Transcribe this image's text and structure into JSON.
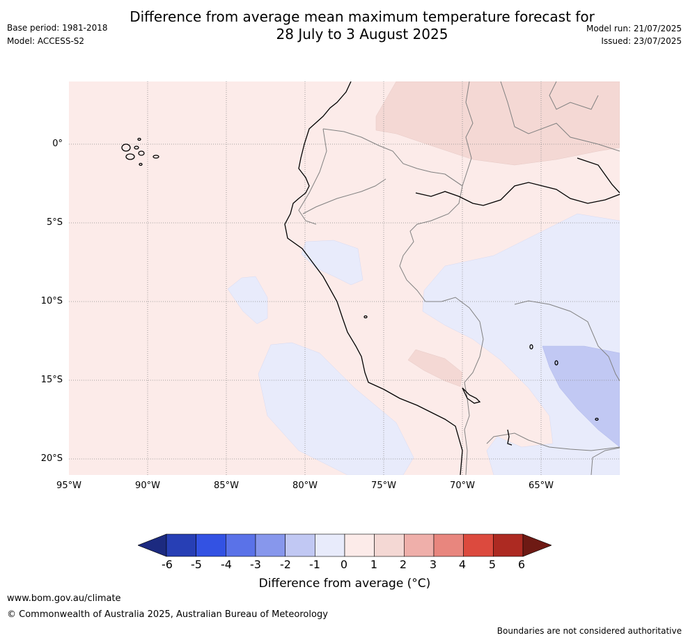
{
  "header": {
    "title_line1": "Difference from average mean maximum temperature forecast for",
    "title_line2": "28 July to 3 August 2025",
    "base_period": "Base period: 1981-2018",
    "model": "Model: ACCESS-S2",
    "model_run": "Model run: 21/07/2025",
    "issued": "Issued: 23/07/2025"
  },
  "map": {
    "lat_labels": [
      "0°",
      "5°S",
      "10°S",
      "15°S",
      "20°S"
    ],
    "lon_labels": [
      "95°W",
      "90°W",
      "85°W",
      "80°W",
      "75°W",
      "70°W",
      "65°W"
    ],
    "colors": {
      "ocean_land_0_1": "#fcebe9",
      "warm_1_2": "#f4d8d4",
      "cool_0_-1": "#e8ebfb",
      "cool_-1_-2": "#c1c8f3",
      "coastline": "#000000",
      "border": "#808080",
      "grid": "#888888"
    }
  },
  "colorbar": {
    "labels": [
      "-6",
      "-5",
      "-4",
      "-3",
      "-2",
      "-1",
      "0",
      "1",
      "2",
      "3",
      "4",
      "5",
      "6"
    ],
    "colors": [
      "#1c2a80",
      "#273fb5",
      "#3352e3",
      "#5a72e8",
      "#8797ec",
      "#c1c8f3",
      "#e8ebfb",
      "#fcebe9",
      "#f4d8d4",
      "#efafaa",
      "#e8867e",
      "#dc4a3e",
      "#ad2a22",
      "#6e1a14"
    ],
    "title": "Difference from average (°C)"
  },
  "footer": {
    "url": "www.bom.gov.au/climate",
    "copyright": "© Commonwealth of Australia 2025, Australian Bureau of Meteorology",
    "disclaimer": "Boundaries are not considered authoritative"
  }
}
